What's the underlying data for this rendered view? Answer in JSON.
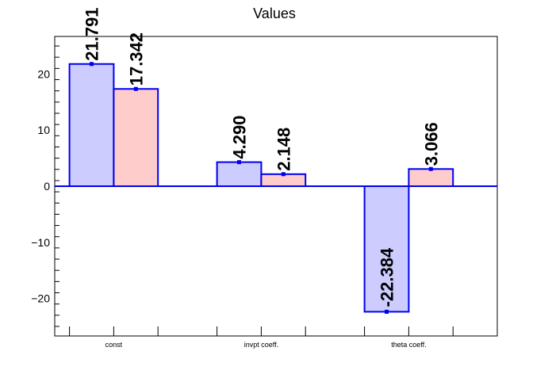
{
  "chart_data": {
    "type": "bar",
    "title": "Values",
    "categories": [
      "const",
      "invpt coeff.",
      "theta coeff."
    ],
    "series": [
      {
        "values": [
          21.791,
          4.29,
          -22.384
        ],
        "labels": [
          "21.791",
          "4.290",
          "-22.384"
        ]
      },
      {
        "values": [
          17.342,
          2.148,
          3.066
        ],
        "labels": [
          "17.342",
          "2.148",
          "3.066"
        ]
      }
    ],
    "ylim": [
      -26.7,
      26.7
    ],
    "yticks": [
      -20,
      -10,
      0,
      10,
      20
    ],
    "ytick_labels": [
      "−20",
      "−10",
      "0",
      "10",
      "20"
    ],
    "colors": {
      "series1_fill": "#ccccff",
      "series2_fill": "#ffcccc",
      "bar_edge": "#0000ee",
      "axis": "#000000",
      "zero_line": "#0000ee"
    },
    "grid": false,
    "legend": "none"
  }
}
